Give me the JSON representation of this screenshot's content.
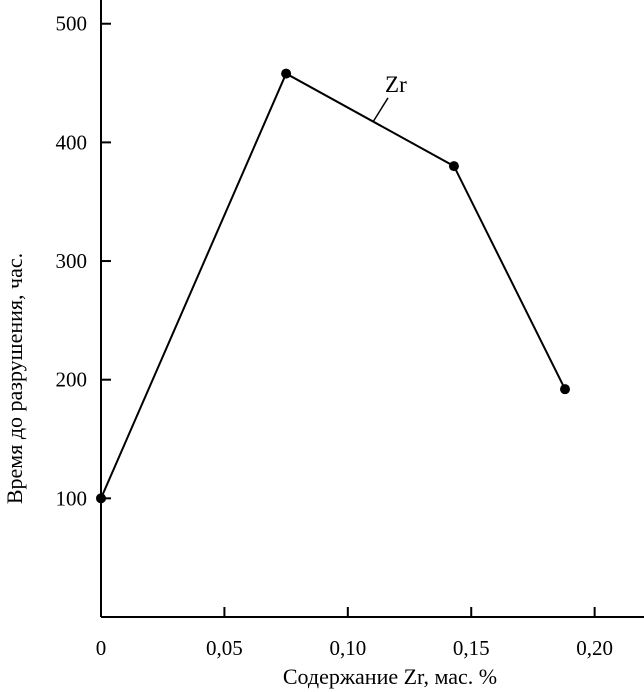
{
  "chart_data": {
    "type": "line",
    "xlabel": "Содержание Zr, мас. %",
    "ylabel": "Время до разрушения, час.",
    "xlim": [
      0,
      0.22
    ],
    "ylim": [
      0,
      520
    ],
    "x_ticks": [
      0,
      0.05,
      0.1,
      0.15,
      0.2
    ],
    "x_tick_labels": [
      "0",
      "0,05",
      "0,10",
      "0,15",
      "0,20"
    ],
    "y_ticks": [
      100,
      200,
      300,
      400,
      500
    ],
    "y_tick_labels": [
      "100",
      "200",
      "300",
      "400",
      "500"
    ],
    "grid": false,
    "series": [
      {
        "name": "Zr",
        "x": [
          0,
          0.075,
          0.143,
          0.188
        ],
        "y": [
          100,
          458,
          380,
          192
        ]
      }
    ],
    "line_color": "#000000",
    "marker_color": "#000000"
  }
}
